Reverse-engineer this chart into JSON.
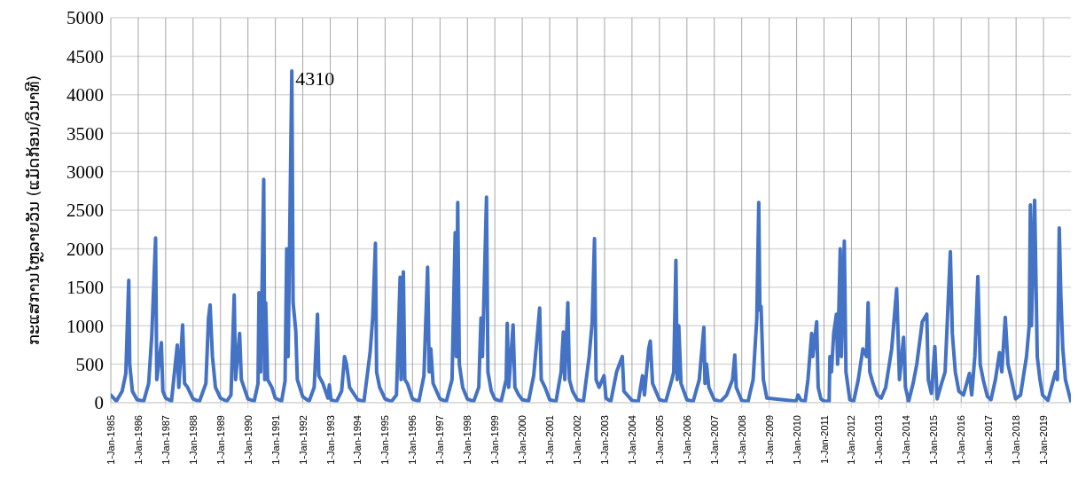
{
  "chart_data": {
    "type": "line",
    "ylabel": "ກະແສການໄຫຼລາຍວັນ (ແມັດກ້ອນ/ວິນາທີ)",
    "annotations": [
      {
        "text": "4310",
        "x": "1991-08-08",
        "y": 4310
      }
    ],
    "x": [
      "1985-01-01",
      "1985-03-15",
      "1985-06-01",
      "1985-07-20",
      "1985-08-28",
      "1985-09-10",
      "1985-10-15",
      "1985-12-15",
      "1986-03-15",
      "1986-05-20",
      "1986-07-01",
      "1986-08-20",
      "1986-09-05",
      "1986-11-05",
      "1986-11-25",
      "1987-01-01",
      "1987-03-20",
      "1987-06-05",
      "1987-06-25",
      "1987-08-15",
      "1987-09-10",
      "1987-10-20",
      "1987-12-31",
      "1988-03-25",
      "1988-06-20",
      "1988-07-25",
      "1988-08-15",
      "1988-09-15",
      "1988-10-25",
      "1988-12-31",
      "1989-03-25",
      "1989-05-20",
      "1989-07-02",
      "1989-07-20",
      "1989-09-12",
      "1989-10-05",
      "1989-12-31",
      "1990-03-25",
      "1990-05-15",
      "1990-05-28",
      "1990-06-20",
      "1990-07-30",
      "1990-08-12",
      "1990-08-25",
      "1990-09-20",
      "1990-11-15",
      "1990-12-31",
      "1991-03-25",
      "1991-05-10",
      "1991-06-01",
      "1991-06-20",
      "1991-08-08",
      "1991-08-25",
      "1991-09-30",
      "1991-10-20",
      "1991-12-31",
      "1992-03-25",
      "1992-06-01",
      "1992-07-15",
      "1992-08-01",
      "1992-09-25",
      "1992-12-01",
      "1992-12-20",
      "1993-01-10",
      "1993-03-25",
      "1993-06-01",
      "1993-07-10",
      "1993-08-05",
      "1993-09-15",
      "1993-12-31",
      "1994-03-25",
      "1994-06-15",
      "1994-07-20",
      "1994-08-25",
      "1994-09-10",
      "1994-10-20",
      "1994-12-31",
      "1995-03-25",
      "1995-06-01",
      "1995-07-20",
      "1995-08-01",
      "1995-09-01",
      "1995-09-20",
      "1995-10-25",
      "1995-12-31",
      "1996-03-25",
      "1996-06-01",
      "1996-07-20",
      "1996-08-10",
      "1996-09-01",
      "1996-10-01",
      "1996-12-31",
      "1997-03-25",
      "1997-06-10",
      "1997-07-22",
      "1997-08-05",
      "1997-08-25",
      "1997-09-15",
      "1997-10-30",
      "1997-12-31",
      "1998-03-25",
      "1998-06-01",
      "1998-07-01",
      "1998-07-20",
      "1998-09-12",
      "1998-10-01",
      "1998-11-15",
      "1998-12-31",
      "1999-03-25",
      "1999-06-01",
      "1999-06-15",
      "1999-07-05",
      "1999-09-01",
      "1999-09-25",
      "1999-11-15",
      "1999-12-31",
      "2000-03-25",
      "2000-06-01",
      "2000-07-10",
      "2000-08-20",
      "2000-09-10",
      "2000-10-30",
      "2000-12-31",
      "2001-03-25",
      "2001-06-01",
      "2001-07-01",
      "2001-07-20",
      "2001-08-30",
      "2001-09-20",
      "2001-11-01",
      "2001-12-31",
      "2002-03-25",
      "2002-06-10",
      "2002-07-20",
      "2002-08-20",
      "2002-09-10",
      "2002-10-20",
      "2002-12-25",
      "2003-01-20",
      "2003-03-25",
      "2003-06-10",
      "2003-08-25",
      "2003-09-15",
      "2003-12-31",
      "2004-03-25",
      "2004-05-20",
      "2004-06-15",
      "2004-08-10",
      "2004-09-01",
      "2004-10-01",
      "2004-12-31",
      "2005-03-25",
      "2005-06-15",
      "2005-07-10",
      "2005-08-08",
      "2005-08-25",
      "2005-09-15",
      "2005-10-15",
      "2005-12-31",
      "2006-03-25",
      "2006-06-15",
      "2006-08-15",
      "2006-08-30",
      "2006-09-20",
      "2006-10-20",
      "2006-12-31",
      "2007-03-25",
      "2007-06-15",
      "2007-09-01",
      "2007-10-01",
      "2007-10-20",
      "2007-12-31",
      "2008-03-25",
      "2008-06-01",
      "2008-07-20",
      "2008-08-15",
      "2008-08-30",
      "2008-09-15",
      "2008-10-15",
      "2008-12-01",
      "2009-12-25",
      "2010-01-20",
      "2010-03-01",
      "2010-04-25",
      "2010-06-01",
      "2010-07-20",
      "2010-08-05",
      "2010-09-25",
      "2010-10-15",
      "2010-11-20",
      "2010-12-31",
      "2011-03-10",
      "2011-03-20",
      "2011-04-10",
      "2011-05-10",
      "2011-06-15",
      "2011-07-01",
      "2011-08-05",
      "2011-08-20",
      "2011-09-28",
      "2011-10-20",
      "2011-12-10",
      "2012-01-31",
      "2012-04-01",
      "2012-06-01",
      "2012-07-20",
      "2012-08-10",
      "2012-09-01",
      "2012-10-15",
      "2012-12-10",
      "2013-02-01",
      "2013-04-01",
      "2013-06-20",
      "2013-08-25",
      "2013-10-01",
      "2013-11-25",
      "2013-12-20",
      "2014-02-01",
      "2014-04-01",
      "2014-05-20",
      "2014-08-01",
      "2014-09-30",
      "2014-10-20",
      "2014-12-01",
      "2015-01-15",
      "2015-02-15",
      "2015-04-15",
      "2015-06-01",
      "2015-08-10",
      "2015-09-05",
      "2015-10-15",
      "2015-12-01",
      "2016-02-01",
      "2016-04-20",
      "2016-05-20",
      "2016-07-01",
      "2016-08-10",
      "2016-09-10",
      "2016-10-20",
      "2016-12-15",
      "2017-02-01",
      "2017-04-01",
      "2017-05-25",
      "2017-06-25",
      "2017-08-10",
      "2017-09-15",
      "2017-11-01",
      "2017-12-25",
      "2018-03-01",
      "2018-05-20",
      "2018-06-25",
      "2018-07-10",
      "2018-07-25",
      "2018-09-05",
      "2018-10-10",
      "2018-11-15",
      "2018-12-20",
      "2019-03-01",
      "2019-06-10",
      "2019-07-05",
      "2019-07-30",
      "2019-08-20",
      "2019-09-15",
      "2019-10-20",
      "2019-12-31"
    ],
    "series": [
      {
        "color": "#4472c4",
        "values": [
          100,
          20,
          150,
          380,
          1590,
          500,
          150,
          40,
          20,
          250,
          880,
          2140,
          300,
          780,
          150,
          60,
          20,
          750,
          200,
          1010,
          250,
          200,
          50,
          15,
          250,
          1100,
          1270,
          600,
          200,
          60,
          20,
          100,
          1400,
          300,
          900,
          300,
          50,
          20,
          250,
          1430,
          400,
          2900,
          300,
          1300,
          300,
          200,
          60,
          20,
          280,
          2000,
          600,
          4310,
          1300,
          930,
          300,
          80,
          20,
          200,
          1150,
          350,
          250,
          60,
          230,
          40,
          15,
          150,
          600,
          500,
          200,
          40,
          15,
          650,
          1100,
          2070,
          400,
          200,
          50,
          15,
          100,
          1630,
          300,
          1700,
          300,
          250,
          50,
          15,
          350,
          1760,
          400,
          700,
          250,
          50,
          15,
          300,
          2210,
          600,
          2600,
          500,
          200,
          50,
          15,
          200,
          1100,
          600,
          2670,
          400,
          150,
          50,
          15,
          300,
          1030,
          200,
          1010,
          200,
          100,
          40,
          20,
          350,
          770,
          1230,
          300,
          200,
          40,
          15,
          400,
          920,
          300,
          1300,
          300,
          150,
          40,
          15,
          600,
          1050,
          2130,
          300,
          200,
          350,
          60,
          15,
          400,
          600,
          150,
          30,
          15,
          350,
          100,
          700,
          800,
          250,
          40,
          15,
          300,
          400,
          1850,
          300,
          1000,
          250,
          40,
          15,
          300,
          980,
          250,
          500,
          200,
          40,
          15,
          100,
          300,
          620,
          200,
          30,
          15,
          300,
          1100,
          2600,
          1200,
          1250,
          300,
          60,
          20,
          100,
          30,
          20,
          300,
          900,
          600,
          1050,
          200,
          50,
          20,
          20,
          600,
          400,
          900,
          1150,
          500,
          2000,
          600,
          2100,
          400,
          40,
          20,
          300,
          700,
          600,
          1300,
          400,
          250,
          100,
          60,
          200,
          700,
          1480,
          300,
          850,
          200,
          20,
          250,
          500,
          1050,
          1150,
          300,
          120,
          730,
          50,
          250,
          400,
          1960,
          900,
          400,
          150,
          100,
          380,
          100,
          600,
          1640,
          500,
          300,
          80,
          40,
          300,
          650,
          400,
          1110,
          500,
          300,
          50,
          100,
          600,
          1000,
          2570,
          1000,
          2630,
          600,
          300,
          100,
          30,
          400,
          300,
          2270,
          1400,
          700,
          300,
          20
        ]
      }
    ],
    "xlim": [
      "1985-01-01",
      "2020-01-01"
    ],
    "xticks": [
      {
        "value": "1985-01-01",
        "label": "1-Jan-1985"
      },
      {
        "value": "1986-01-01",
        "label": "1-Jan-1986"
      },
      {
        "value": "1987-01-01",
        "label": "1-Jan-1987"
      },
      {
        "value": "1988-01-01",
        "label": "1-Jan-1988"
      },
      {
        "value": "1989-01-01",
        "label": "1-Jan-1989"
      },
      {
        "value": "1990-01-01",
        "label": "1-Jan-1990"
      },
      {
        "value": "1991-01-01",
        "label": "1-Jan-1991"
      },
      {
        "value": "1992-01-01",
        "label": "1-Jan-1992"
      },
      {
        "value": "1993-01-01",
        "label": "1-Jan-1993"
      },
      {
        "value": "1994-01-01",
        "label": "1-Jan-1994"
      },
      {
        "value": "1995-01-01",
        "label": "1-Jan-1995"
      },
      {
        "value": "1996-01-01",
        "label": "1-Jan-1996"
      },
      {
        "value": "1997-01-01",
        "label": "1-Jan-1997"
      },
      {
        "value": "1998-01-01",
        "label": "1-Jan-1998"
      },
      {
        "value": "1999-01-01",
        "label": "1-Jan-1999"
      },
      {
        "value": "2000-01-01",
        "label": "1-Jan-2000"
      },
      {
        "value": "2001-01-01",
        "label": "1-Jan-2001"
      },
      {
        "value": "2002-01-01",
        "label": "1-Jan-2002"
      },
      {
        "value": "2003-01-01",
        "label": "1-Jan-2003"
      },
      {
        "value": "2004-01-01",
        "label": "1-Jan-2004"
      },
      {
        "value": "2005-01-01",
        "label": "1-Jan-2005"
      },
      {
        "value": "2006-01-01",
        "label": "1-Jan-2006"
      },
      {
        "value": "2007-01-01",
        "label": "1-Jan-2007"
      },
      {
        "value": "2008-01-01",
        "label": "1-Jan-2008"
      },
      {
        "value": "2009-01-01",
        "label": "1-Jan-2009"
      },
      {
        "value": "2010-01-01",
        "label": "1-Jan-2010"
      },
      {
        "value": "2011-01-01",
        "label": "1-Jan-2011"
      },
      {
        "value": "2012-01-01",
        "label": "1-Jan-2012"
      },
      {
        "value": "2013-01-01",
        "label": "1-Jan-2013"
      },
      {
        "value": "2014-01-01",
        "label": "1-Jan-2014"
      },
      {
        "value": "2015-01-01",
        "label": "1-Jan-2015"
      },
      {
        "value": "2016-01-01",
        "label": "1-Jan-2016"
      },
      {
        "value": "2017-01-01",
        "label": "1-Jan-2017"
      },
      {
        "value": "2018-01-01",
        "label": "1-Jan-2018"
      },
      {
        "value": "2019-01-01",
        "label": "1-Jan-2019"
      }
    ],
    "ylim": [
      0,
      5000
    ],
    "yticks": [
      0,
      500,
      1000,
      1500,
      2000,
      2500,
      3000,
      3500,
      4000,
      4500,
      5000
    ],
    "grid": true,
    "legend": false,
    "marker": "none",
    "line_style": "solid"
  }
}
